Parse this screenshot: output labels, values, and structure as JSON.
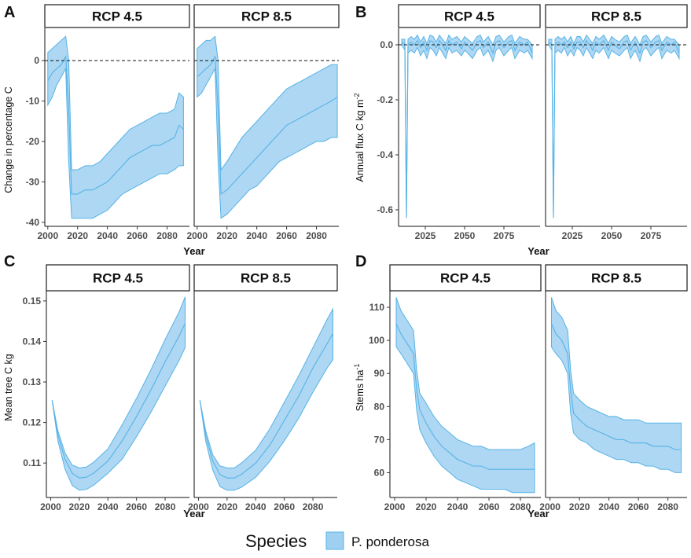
{
  "legend": {
    "title": "Species",
    "label": "P. ponderosa",
    "fill": "#9fd0f1",
    "stroke": "#57b3e6"
  },
  "chart_data": [
    {
      "panel": "A",
      "type": "area",
      "facets": [
        "RCP 4.5",
        "RCP 8.5"
      ],
      "xlabel": "Year",
      "ylabel": "Change in percentage C",
      "xlim": [
        1998,
        2095
      ],
      "ylim": [
        -41,
        8
      ],
      "xticks": [
        2000,
        2020,
        2040,
        2060,
        2080
      ],
      "yticks": [
        0,
        -10,
        -20,
        -30,
        -40
      ],
      "hline": 0,
      "series": [
        {
          "facet": "RCP 4.5",
          "x": [
            2000,
            2003,
            2006,
            2009,
            2012,
            2014,
            2016,
            2020,
            2025,
            2030,
            2035,
            2040,
            2045,
            2050,
            2055,
            2060,
            2065,
            2070,
            2075,
            2080,
            2085,
            2088,
            2091
          ],
          "mean": [
            -5,
            -3,
            -2,
            -1,
            1,
            -12,
            -33,
            -33,
            -32,
            -32,
            -31,
            -30,
            -28,
            -26,
            -24,
            -23,
            -22,
            -21,
            -21,
            -20,
            -19,
            -16,
            -17
          ],
          "lower": [
            -11,
            -9,
            -6,
            -4,
            -2,
            -25,
            -39,
            -39,
            -39,
            -39,
            -38,
            -37,
            -35,
            -33,
            -32,
            -31,
            -30,
            -29,
            -28,
            -28,
            -27,
            -26,
            -26
          ],
          "upper": [
            2,
            3,
            4,
            5,
            6,
            0,
            -27,
            -27,
            -26,
            -26,
            -25,
            -23,
            -21,
            -19,
            -17,
            -16,
            -15,
            -14,
            -13,
            -13,
            -12,
            -8,
            -9
          ]
        },
        {
          "facet": "RCP 8.5",
          "x": [
            2000,
            2003,
            2006,
            2009,
            2012,
            2014,
            2016,
            2020,
            2025,
            2030,
            2035,
            2040,
            2045,
            2050,
            2055,
            2060,
            2065,
            2070,
            2075,
            2080,
            2085,
            2090,
            2094
          ],
          "mean": [
            -4,
            -3,
            -2,
            -1,
            1,
            -12,
            -33,
            -32,
            -30,
            -28,
            -26,
            -24,
            -22,
            -20,
            -18,
            -16,
            -15,
            -14,
            -13,
            -12,
            -11,
            -10,
            -9
          ],
          "lower": [
            -9,
            -8,
            -6,
            -4,
            -2,
            -25,
            -39,
            -38,
            -36,
            -34,
            -32,
            -31,
            -29,
            -27,
            -25,
            -24,
            -23,
            -22,
            -21,
            -20,
            -20,
            -19,
            -19
          ],
          "upper": [
            3,
            4,
            5,
            5,
            6,
            0,
            -27,
            -25,
            -22,
            -19,
            -17,
            -15,
            -13,
            -11,
            -9,
            -7,
            -6,
            -5,
            -4,
            -3,
            -2,
            -1,
            -1
          ]
        }
      ]
    },
    {
      "panel": "B",
      "type": "area",
      "facets": [
        "RCP 4.5",
        "RCP 8.5"
      ],
      "xlabel": "Year",
      "ylabel": "Annual flux C kg  m",
      "ylabel_sup": "-2",
      "xlim": [
        2008,
        2098
      ],
      "ylim": [
        -0.66,
        0.06
      ],
      "xticks": [
        2025,
        2050,
        2075
      ],
      "yticks": [
        0.0,
        -0.2,
        -0.4,
        -0.6
      ],
      "ytick_labels": [
        "0.0",
        "-0.2",
        "-0.4",
        "-0.6"
      ],
      "hline": 0,
      "series": [
        {
          "facet": "RCP 4.5",
          "x": [
            2010,
            2012,
            2013,
            2014,
            2016,
            2018,
            2020,
            2022,
            2024,
            2026,
            2028,
            2030,
            2032,
            2034,
            2036,
            2038,
            2040,
            2042,
            2045,
            2048,
            2050,
            2052,
            2055,
            2058,
            2060,
            2062,
            2065,
            2068,
            2070,
            2072,
            2075,
            2078,
            2080,
            2082,
            2085,
            2088,
            2090,
            2093
          ],
          "mean": [
            0.01,
            0.0,
            -0.63,
            0.0,
            0.01,
            0.0,
            0.015,
            -0.01,
            0.01,
            -0.02,
            0.015,
            0.01,
            -0.01,
            0.015,
            0.0,
            -0.02,
            0.015,
            0.0,
            0.01,
            -0.015,
            0.01,
            0.0,
            -0.02,
            0.01,
            0.015,
            -0.01,
            0.01,
            -0.03,
            0.01,
            0.015,
            -0.01,
            0.01,
            0.015,
            -0.02,
            0.01,
            0.0,
            0.01,
            -0.03
          ],
          "lower": [
            0.0,
            -0.02,
            -0.63,
            -0.03,
            -0.02,
            -0.03,
            -0.01,
            -0.04,
            -0.02,
            -0.05,
            -0.01,
            -0.02,
            -0.04,
            -0.01,
            -0.03,
            -0.05,
            -0.01,
            -0.03,
            -0.02,
            -0.04,
            -0.02,
            -0.03,
            -0.05,
            -0.02,
            -0.01,
            -0.04,
            -0.02,
            -0.06,
            -0.02,
            -0.01,
            -0.04,
            -0.02,
            -0.01,
            -0.05,
            -0.02,
            -0.03,
            -0.02,
            -0.05
          ],
          "upper": [
            0.02,
            0.02,
            -0.63,
            0.02,
            0.03,
            0.02,
            0.035,
            0.01,
            0.03,
            0.005,
            0.035,
            0.03,
            0.01,
            0.035,
            0.02,
            0.005,
            0.035,
            0.02,
            0.03,
            0.01,
            0.03,
            0.02,
            0.005,
            0.03,
            0.035,
            0.01,
            0.03,
            0.0,
            0.03,
            0.035,
            0.01,
            0.03,
            0.035,
            0.005,
            0.03,
            0.02,
            0.02,
            0.0
          ]
        },
        {
          "facet": "RCP 8.5",
          "x": [
            2010,
            2012,
            2013,
            2014,
            2016,
            2018,
            2020,
            2022,
            2024,
            2026,
            2028,
            2030,
            2032,
            2034,
            2036,
            2038,
            2040,
            2042,
            2045,
            2048,
            2050,
            2052,
            2055,
            2058,
            2060,
            2062,
            2065,
            2068,
            2070,
            2072,
            2075,
            2078,
            2080,
            2082,
            2085,
            2088,
            2090,
            2093
          ],
          "mean": [
            0.01,
            0.0,
            -0.63,
            0.0,
            0.01,
            0.0,
            0.01,
            -0.01,
            0.01,
            -0.015,
            0.01,
            0.01,
            -0.01,
            0.015,
            0.0,
            -0.02,
            0.01,
            0.0,
            0.015,
            -0.02,
            0.01,
            0.0,
            -0.015,
            0.01,
            0.015,
            -0.02,
            0.01,
            -0.03,
            0.01,
            0.015,
            -0.01,
            0.01,
            0.015,
            -0.02,
            0.01,
            0.0,
            0.01,
            -0.03
          ],
          "lower": [
            0.0,
            -0.02,
            -0.63,
            -0.03,
            -0.02,
            -0.03,
            -0.01,
            -0.04,
            -0.02,
            -0.04,
            -0.01,
            -0.02,
            -0.04,
            -0.01,
            -0.03,
            -0.05,
            -0.02,
            -0.03,
            -0.01,
            -0.05,
            -0.02,
            -0.03,
            -0.04,
            -0.02,
            -0.01,
            -0.05,
            -0.02,
            -0.06,
            -0.02,
            -0.01,
            -0.04,
            -0.02,
            -0.01,
            -0.05,
            -0.02,
            -0.03,
            -0.02,
            -0.05
          ],
          "upper": [
            0.02,
            0.02,
            -0.63,
            0.02,
            0.03,
            0.02,
            0.03,
            0.01,
            0.03,
            0.005,
            0.03,
            0.03,
            0.01,
            0.035,
            0.02,
            0.005,
            0.03,
            0.02,
            0.035,
            0.005,
            0.03,
            0.02,
            0.01,
            0.03,
            0.035,
            0.005,
            0.03,
            0.0,
            0.03,
            0.035,
            0.01,
            0.03,
            0.035,
            0.005,
            0.03,
            0.02,
            0.02,
            0.0
          ]
        }
      ]
    },
    {
      "panel": "C",
      "type": "area",
      "facets": [
        "RCP 4.5",
        "RCP 8.5"
      ],
      "xlabel": "Year",
      "ylabel": "Mean tree C kg",
      "xlim": [
        1997,
        2097
      ],
      "ylim": [
        0.1015,
        0.1525
      ],
      "xticks": [
        2000,
        2020,
        2040,
        2060,
        2080
      ],
      "yticks": [
        0.11,
        0.12,
        0.13,
        0.14,
        0.15
      ],
      "ytick_labels": [
        "0.11",
        "0.12",
        "0.13",
        "0.14",
        "0.15"
      ],
      "series": [
        {
          "facet": "RCP 4.5",
          "x": [
            2001,
            2005,
            2010,
            2015,
            2020,
            2025,
            2030,
            2040,
            2050,
            2060,
            2070,
            2080,
            2090,
            2094
          ],
          "mean": [
            0.1255,
            0.117,
            0.111,
            0.1075,
            0.1063,
            0.1065,
            0.1075,
            0.1105,
            0.1155,
            0.1215,
            0.128,
            0.135,
            0.1415,
            0.1445
          ],
          "lower": [
            0.1255,
            0.1155,
            0.1085,
            0.1045,
            0.1033,
            0.1035,
            0.1045,
            0.1075,
            0.111,
            0.1165,
            0.1225,
            0.129,
            0.1355,
            0.1385
          ],
          "upper": [
            0.1255,
            0.118,
            0.1125,
            0.1095,
            0.1088,
            0.109,
            0.1102,
            0.1135,
            0.1195,
            0.126,
            0.133,
            0.1405,
            0.1475,
            0.151
          ]
        },
        {
          "facet": "RCP 8.5",
          "x": [
            2001,
            2005,
            2010,
            2015,
            2020,
            2025,
            2030,
            2040,
            2050,
            2060,
            2070,
            2080,
            2090,
            2094
          ],
          "mean": [
            0.1255,
            0.117,
            0.1105,
            0.1072,
            0.1063,
            0.1063,
            0.1072,
            0.11,
            0.1145,
            0.1205,
            0.1265,
            0.1335,
            0.1395,
            0.142
          ],
          "lower": [
            0.1255,
            0.1155,
            0.1082,
            0.1042,
            0.1033,
            0.1033,
            0.104,
            0.1065,
            0.1105,
            0.1155,
            0.121,
            0.1275,
            0.1335,
            0.1355
          ],
          "upper": [
            0.1255,
            0.118,
            0.112,
            0.1093,
            0.1088,
            0.1088,
            0.11,
            0.1132,
            0.1185,
            0.125,
            0.1315,
            0.1385,
            0.1455,
            0.148
          ]
        }
      ]
    },
    {
      "panel": "D",
      "type": "area",
      "facets": [
        "RCP 4.5",
        "RCP 8.5"
      ],
      "xlabel": "Year",
      "ylabel": "Stems  ha",
      "ylabel_sup": "-1",
      "xlim": [
        1997,
        2093
      ],
      "ylim": [
        52.5,
        115
      ],
      "xticks": [
        2000,
        2020,
        2040,
        2060,
        2080
      ],
      "yticks": [
        60,
        70,
        80,
        90,
        100,
        110
      ],
      "series": [
        {
          "facet": "RCP 4.5",
          "x": [
            2001,
            2004,
            2008,
            2012,
            2014,
            2016,
            2020,
            2025,
            2030,
            2035,
            2040,
            2045,
            2050,
            2055,
            2060,
            2065,
            2070,
            2075,
            2080,
            2085,
            2089
          ],
          "mean": [
            105,
            102,
            99,
            96,
            85,
            79,
            75,
            71,
            68,
            66,
            64,
            63,
            62,
            62,
            61,
            61,
            61,
            61,
            61,
            61,
            61
          ],
          "lower": [
            98,
            96,
            93,
            90,
            79,
            73,
            69,
            65,
            62,
            60,
            58,
            57,
            56,
            55,
            55,
            55,
            55,
            54,
            54,
            54,
            54
          ],
          "upper": [
            113,
            109,
            106,
            103,
            91,
            84,
            81,
            77,
            74,
            72,
            70,
            69,
            68,
            68,
            67,
            67,
            67,
            67,
            67,
            68,
            69
          ]
        },
        {
          "facet": "RCP 8.5",
          "x": [
            2001,
            2004,
            2008,
            2012,
            2014,
            2016,
            2020,
            2025,
            2030,
            2035,
            2040,
            2045,
            2050,
            2055,
            2060,
            2065,
            2070,
            2075,
            2080,
            2085,
            2089
          ],
          "mean": [
            105,
            102,
            100,
            96,
            85,
            78,
            76,
            74,
            73,
            72,
            71,
            70,
            70,
            69,
            69,
            69,
            68,
            68,
            68,
            67,
            67
          ],
          "lower": [
            98,
            96,
            94,
            90,
            78,
            72,
            70,
            69,
            67,
            66,
            65,
            64,
            64,
            63,
            63,
            62,
            62,
            61,
            61,
            60,
            60
          ],
          "upper": [
            113,
            109,
            107,
            103,
            91,
            84,
            82,
            80,
            79,
            78,
            77,
            77,
            76,
            76,
            76,
            75,
            75,
            75,
            75,
            75,
            75
          ]
        }
      ]
    }
  ]
}
